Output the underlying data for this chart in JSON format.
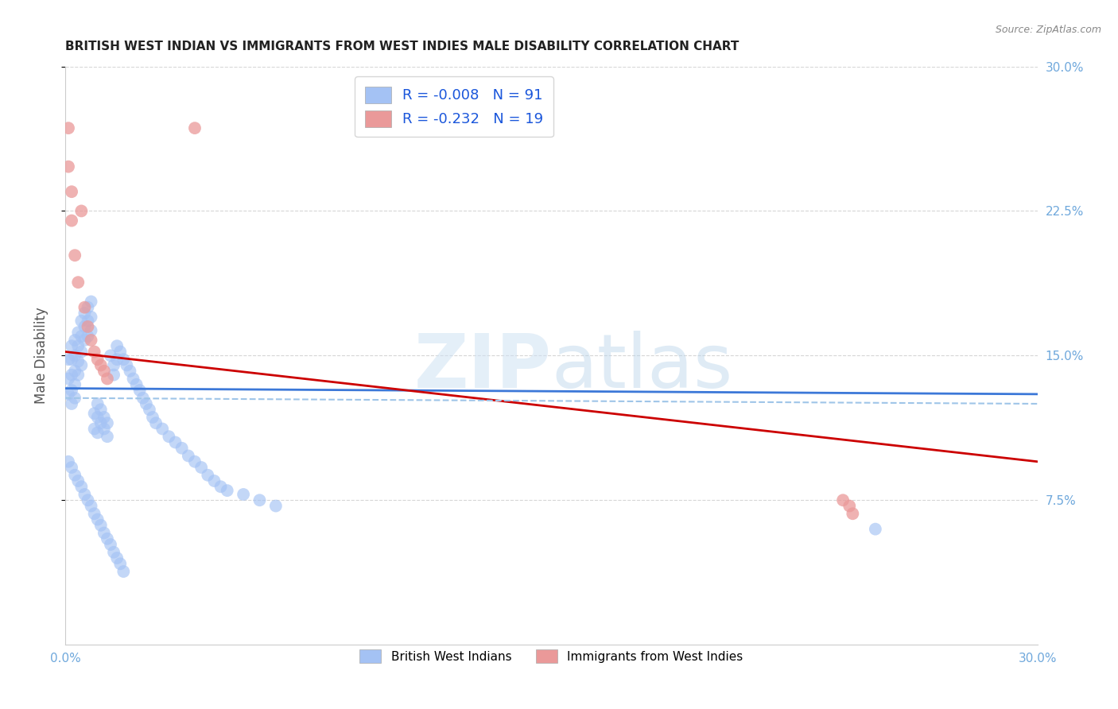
{
  "title": "BRITISH WEST INDIAN VS IMMIGRANTS FROM WEST INDIES MALE DISABILITY CORRELATION CHART",
  "source": "Source: ZipAtlas.com",
  "ylabel": "Male Disability",
  "xlim": [
    0.0,
    0.3
  ],
  "ylim": [
    0.0,
    0.3
  ],
  "y_ticks": [
    0.075,
    0.15,
    0.225,
    0.3
  ],
  "y_tick_labels_right": [
    "7.5%",
    "15.0%",
    "22.5%",
    "30.0%"
  ],
  "legend_r1": "R = -0.008",
  "legend_n1": "N = 91",
  "legend_r2": "R = -0.232",
  "legend_n2": "N = 19",
  "blue_color": "#a4c2f4",
  "pink_color": "#ea9999",
  "blue_line_color": "#3c78d8",
  "pink_line_color": "#cc0000",
  "dashed_line_color": "#9fc5e8",
  "background_color": "#ffffff",
  "grid_color": "#cccccc",
  "legend_label_1": "British West Indians",
  "legend_label_2": "Immigrants from West Indies",
  "blue_scatter_x": [
    0.001,
    0.001,
    0.001,
    0.002,
    0.002,
    0.002,
    0.002,
    0.002,
    0.003,
    0.003,
    0.003,
    0.003,
    0.003,
    0.004,
    0.004,
    0.004,
    0.004,
    0.005,
    0.005,
    0.005,
    0.005,
    0.006,
    0.006,
    0.006,
    0.007,
    0.007,
    0.007,
    0.008,
    0.008,
    0.008,
    0.009,
    0.009,
    0.01,
    0.01,
    0.01,
    0.011,
    0.011,
    0.012,
    0.012,
    0.013,
    0.013,
    0.014,
    0.015,
    0.015,
    0.016,
    0.016,
    0.017,
    0.018,
    0.019,
    0.02,
    0.021,
    0.022,
    0.023,
    0.024,
    0.025,
    0.026,
    0.027,
    0.028,
    0.03,
    0.032,
    0.034,
    0.036,
    0.038,
    0.04,
    0.042,
    0.044,
    0.046,
    0.048,
    0.05,
    0.055,
    0.06,
    0.065,
    0.001,
    0.002,
    0.003,
    0.004,
    0.005,
    0.006,
    0.007,
    0.008,
    0.009,
    0.01,
    0.011,
    0.012,
    0.013,
    0.014,
    0.015,
    0.016,
    0.017,
    0.018,
    0.25
  ],
  "blue_scatter_y": [
    0.148,
    0.138,
    0.13,
    0.155,
    0.148,
    0.14,
    0.132,
    0.125,
    0.158,
    0.15,
    0.142,
    0.135,
    0.128,
    0.162,
    0.155,
    0.147,
    0.14,
    0.168,
    0.16,
    0.152,
    0.145,
    0.172,
    0.165,
    0.158,
    0.175,
    0.168,
    0.16,
    0.178,
    0.17,
    0.163,
    0.12,
    0.112,
    0.125,
    0.118,
    0.11,
    0.122,
    0.115,
    0.118,
    0.112,
    0.115,
    0.108,
    0.15,
    0.145,
    0.14,
    0.155,
    0.148,
    0.152,
    0.148,
    0.145,
    0.142,
    0.138,
    0.135,
    0.132,
    0.128,
    0.125,
    0.122,
    0.118,
    0.115,
    0.112,
    0.108,
    0.105,
    0.102,
    0.098,
    0.095,
    0.092,
    0.088,
    0.085,
    0.082,
    0.08,
    0.078,
    0.075,
    0.072,
    0.095,
    0.092,
    0.088,
    0.085,
    0.082,
    0.078,
    0.075,
    0.072,
    0.068,
    0.065,
    0.062,
    0.058,
    0.055,
    0.052,
    0.048,
    0.045,
    0.042,
    0.038,
    0.06
  ],
  "pink_scatter_x": [
    0.001,
    0.001,
    0.002,
    0.002,
    0.003,
    0.004,
    0.005,
    0.006,
    0.007,
    0.008,
    0.009,
    0.01,
    0.011,
    0.012,
    0.013,
    0.04,
    0.24,
    0.242,
    0.243
  ],
  "pink_scatter_y": [
    0.268,
    0.248,
    0.235,
    0.22,
    0.202,
    0.188,
    0.225,
    0.175,
    0.165,
    0.158,
    0.152,
    0.148,
    0.145,
    0.142,
    0.138,
    0.268,
    0.075,
    0.072,
    0.068
  ],
  "blue_trend_x": [
    0.0,
    0.3
  ],
  "blue_trend_y": [
    0.133,
    0.13
  ],
  "pink_trend_x": [
    0.0,
    0.3
  ],
  "pink_trend_y": [
    0.152,
    0.095
  ],
  "dashed_trend_x": [
    0.0,
    0.3
  ],
  "dashed_trend_y": [
    0.128,
    0.125
  ]
}
